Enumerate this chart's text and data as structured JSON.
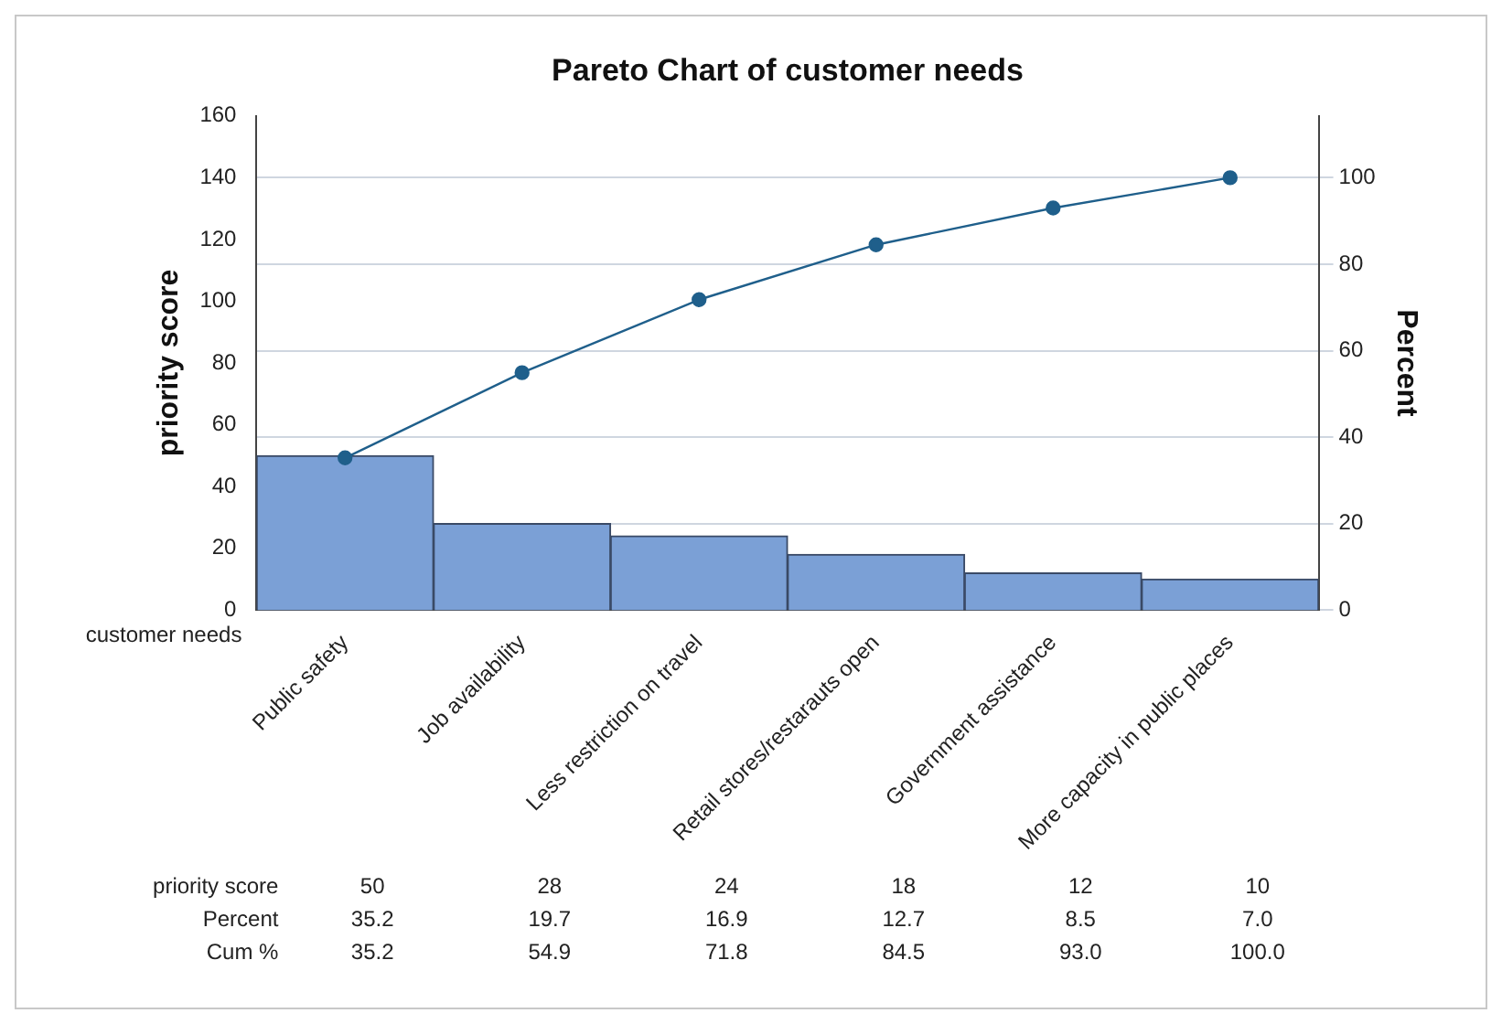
{
  "chart_data": {
    "type": "bar",
    "title": "Pareto Chart of customer needs",
    "xlabel": "customer needs",
    "ylabel": "priority score",
    "y2label": "Percent",
    "categories": [
      "Public safety",
      "Job availability",
      "Less restriction on travel",
      "Retail stores/restarauts open",
      "Government assistance",
      "More capacity in public places"
    ],
    "series": [
      {
        "color": "#7ba0d6",
        "values": [
          50,
          28,
          24,
          18,
          12,
          10
        ],
        "value_labels": [
          "50",
          "28",
          "24",
          "18",
          "12",
          "10"
        ]
      },
      {
        "type": "line",
        "axis": "y2",
        "color": "#1f5f8b",
        "values": [
          35.2,
          54.9,
          71.8,
          84.5,
          93.0,
          100.0
        ],
        "value_labels": [
          "35.2",
          "54.9",
          "71.8",
          "84.5",
          "93.0",
          "100.0"
        ]
      }
    ],
    "ylim": [
      0,
      160
    ],
    "yticks": [
      0,
      20,
      40,
      60,
      80,
      100,
      120,
      140,
      160
    ],
    "y2lim": [
      0,
      114.3
    ],
    "y2ticks": [
      0,
      20,
      40,
      60,
      80,
      100
    ],
    "grid": "y2",
    "marker": "circle",
    "legend": false,
    "annotations": [
      "priority score",
      "Percent",
      "35.2",
      "19.7",
      "16.9",
      "12.7",
      "8.5",
      "7.0",
      "Cum %"
    ]
  }
}
